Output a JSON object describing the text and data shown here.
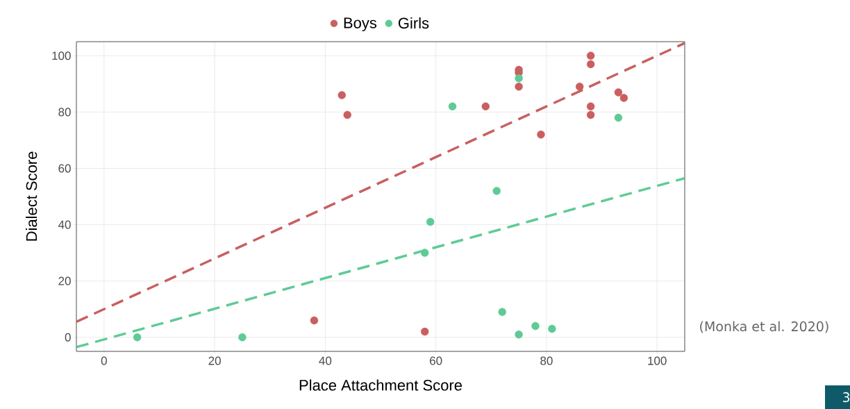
{
  "chart_data": {
    "type": "scatter",
    "xlabel": "Place Attachment Score",
    "ylabel": "Dialect Score",
    "xlim": [
      -5,
      105
    ],
    "ylim": [
      -5,
      105
    ],
    "xticks": [
      0,
      20,
      40,
      60,
      80,
      100
    ],
    "yticks": [
      0,
      20,
      40,
      60,
      80,
      100
    ],
    "grid": true,
    "legend": "top",
    "series": [
      {
        "name": "Boys",
        "color": "#c95f5f",
        "marker": "circle",
        "x": [
          38,
          43,
          44,
          58,
          69,
          75,
          75,
          75,
          79,
          86,
          88,
          88,
          88,
          88,
          93,
          94
        ],
        "values": [
          6,
          86,
          79,
          2,
          82,
          95,
          94,
          89,
          72,
          89,
          100,
          97,
          82,
          79,
          87,
          85
        ]
      },
      {
        "name": "Girls",
        "color": "#5ecb95",
        "marker": "circle",
        "x": [
          6,
          25,
          58,
          59,
          63,
          71,
          72,
          75,
          75,
          78,
          81,
          93
        ],
        "values": [
          0,
          0,
          30,
          41,
          82,
          52,
          9,
          1,
          92,
          4,
          3,
          78
        ]
      },
      {
        "color": "#c95f5f",
        "type": "line",
        "marker": "none",
        "line_style": "dashed",
        "x": [
          -5,
          105
        ],
        "values": [
          5.5,
          104.5
        ]
      },
      {
        "color": "#5ecb95",
        "type": "line",
        "marker": "none",
        "line_style": "dashed",
        "x": [
          -5,
          105
        ],
        "values": [
          -3.5,
          56.5
        ]
      }
    ],
    "annotations": [
      "(Monka et al.  2020)",
      "3"
    ]
  }
}
